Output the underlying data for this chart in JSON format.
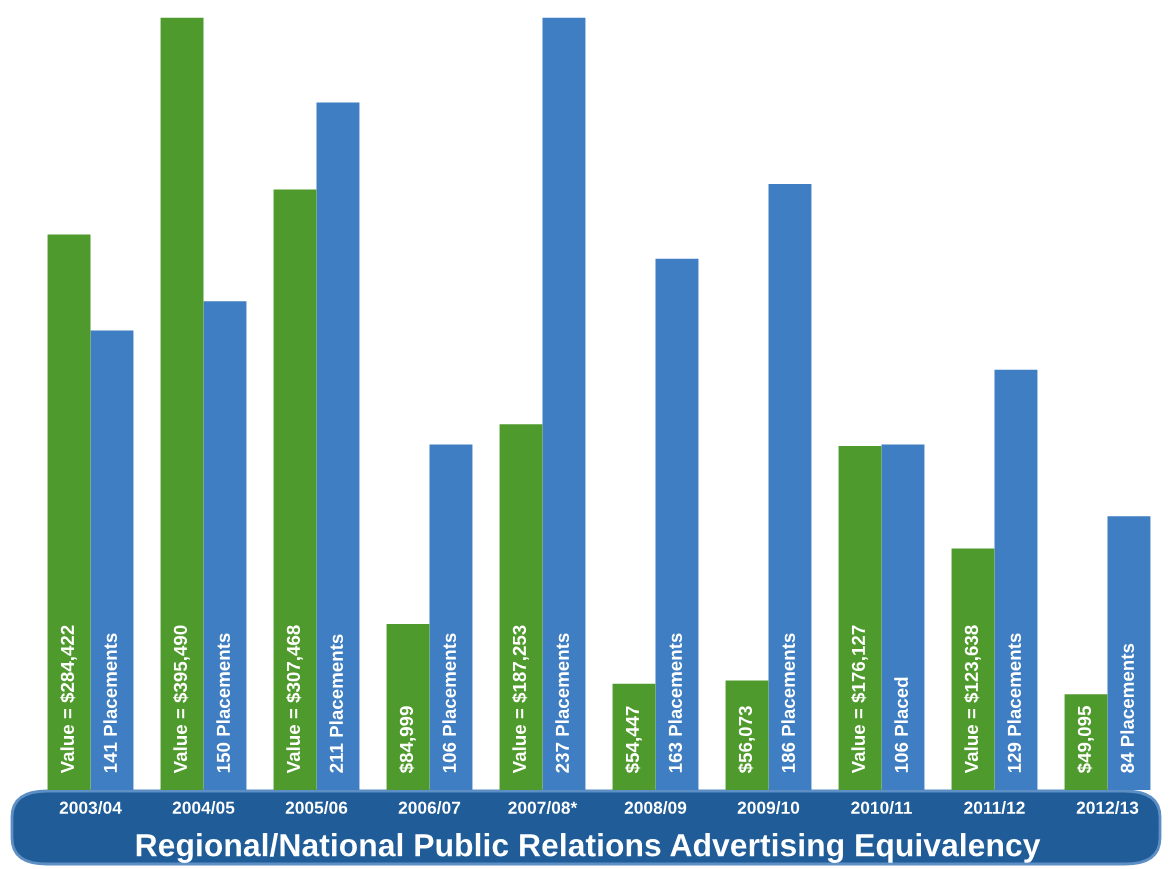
{
  "chart_data": {
    "type": "bar",
    "title": "Regional/National Public Relations Advertising Equivalency",
    "categories": [
      "2003/04",
      "2004/05",
      "2005/06",
      "2006/07",
      "2007/08*",
      "2008/09",
      "2009/10",
      "2010/11",
      "2011/12",
      "2012/13"
    ],
    "series": [
      {
        "color": "#4f9a2c",
        "values": [
          284422,
          395490,
          307468,
          84999,
          187253,
          54447,
          56073,
          176127,
          123638,
          49095
        ],
        "value_labels": [
          "Value = $284,422",
          "Value = $395,490",
          "Value = $307,468",
          "$84,999",
          "Value = $187,253",
          "$54,447",
          "$56,073",
          "Value = $176,127",
          "Value = $123,638",
          "$49,095"
        ]
      },
      {
        "color": "#3f7ec2",
        "axis": "y2",
        "values": [
          141,
          150,
          211,
          106,
          237,
          163,
          186,
          106,
          129,
          84
        ],
        "value_labels": [
          "141 Placements",
          "150 Placements",
          "211 Placements",
          "106 Placements",
          "237 Placements",
          "163 Placements",
          "186 Placements",
          "106 Placed",
          "129 Placements",
          "84 Placements"
        ]
      }
    ],
    "legend": false
  }
}
